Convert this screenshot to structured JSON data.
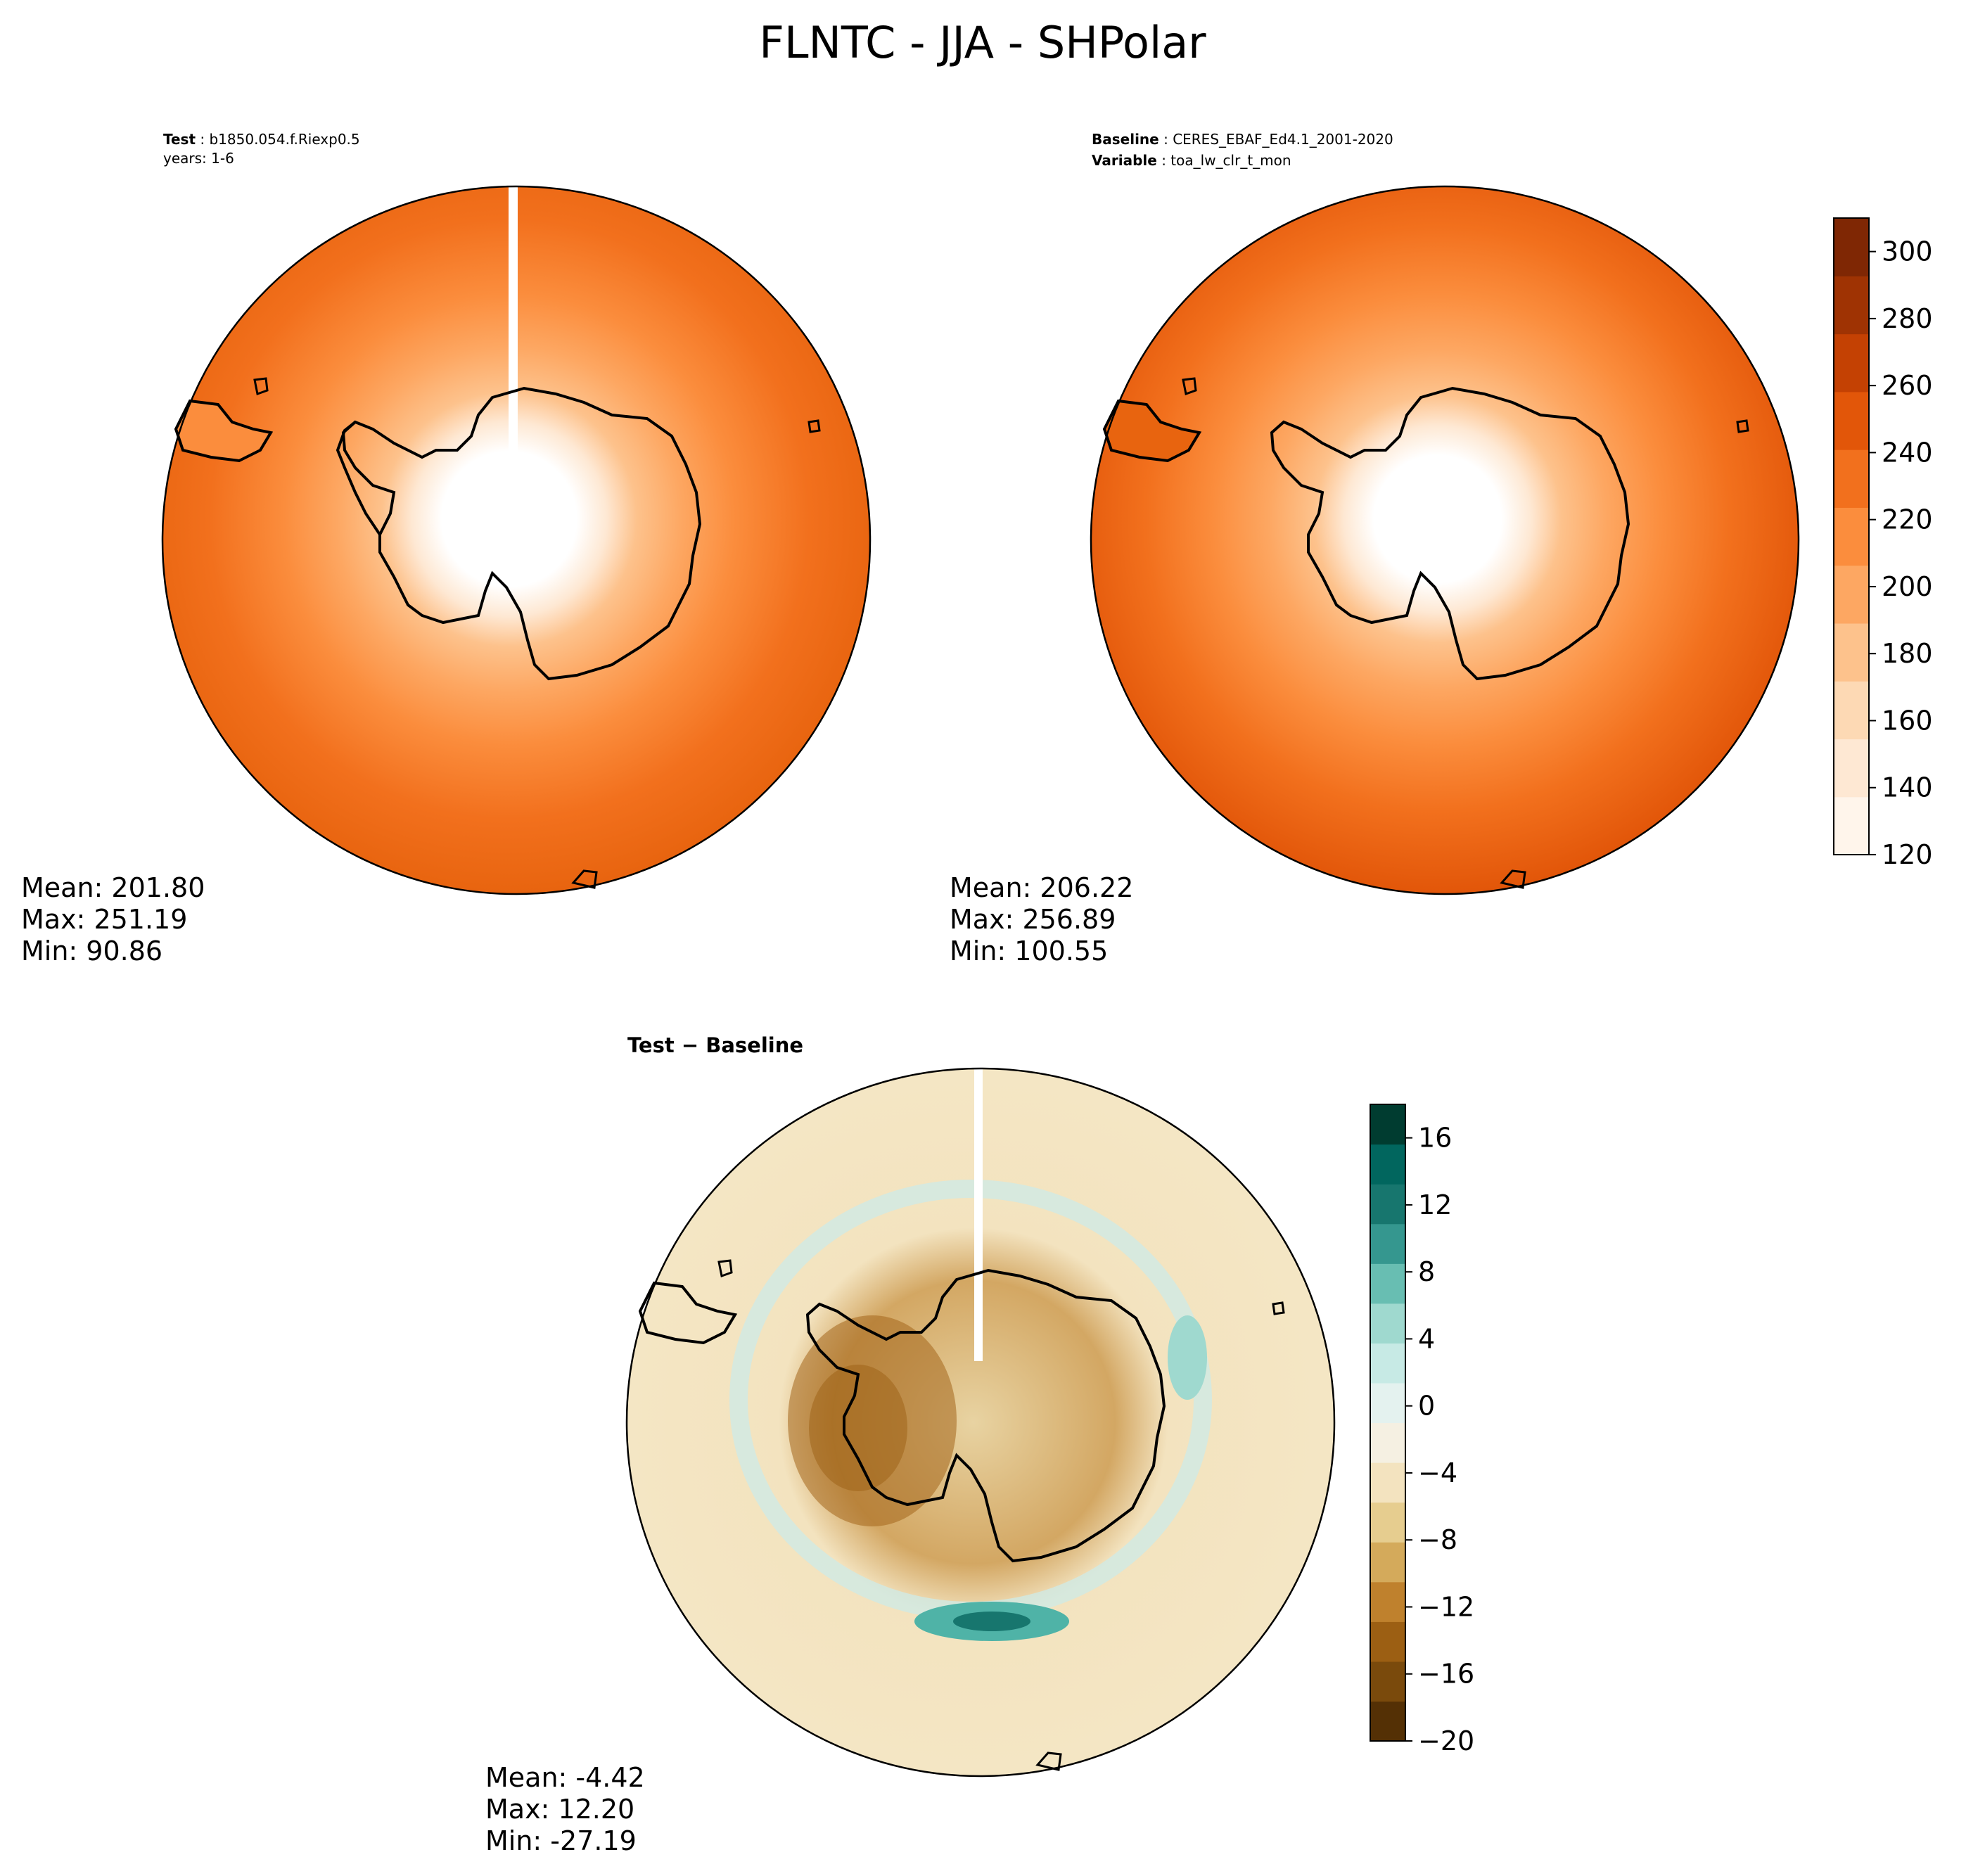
{
  "title": "FLNTC - JJA - SHPolar",
  "panels": {
    "test": {
      "label": "Test",
      "label_value": "b1850.054.f.Riexp0.5",
      "line2": "years: 1-6",
      "stats": {
        "mean": "Mean: 201.80",
        "max": "Max: 251.19",
        "min": "Min: 90.86"
      }
    },
    "baseline": {
      "label": "Baseline",
      "label_value": "CERES_EBAF_Ed4.1_2001-2020",
      "label2": "Variable",
      "label2_value": "toa_lw_clr_t_mon",
      "stats": {
        "mean": "Mean: 206.22",
        "max": "Max: 256.89",
        "min": "Min: 100.55"
      }
    },
    "diff": {
      "label": "Test − Baseline",
      "stats": {
        "mean": "Mean: -4.42",
        "max": "Max: 12.20",
        "min": "Min: -27.19"
      }
    }
  },
  "colorbar_top": {
    "ticks": [
      "120",
      "140",
      "160",
      "180",
      "200",
      "220",
      "240",
      "260",
      "280",
      "300"
    ],
    "range": [
      120,
      310
    ],
    "colors": [
      "#fff5eb",
      "#fee8d3",
      "#fdd9b4",
      "#fdc28c",
      "#fda762",
      "#fb8d3d",
      "#f2701d",
      "#e25609",
      "#c44103",
      "#9f3303",
      "#7f2704"
    ]
  },
  "colorbar_diff": {
    "ticks": [
      "−20",
      "−16",
      "−12",
      "−8",
      "−4",
      "0",
      "4",
      "8",
      "12",
      "16"
    ],
    "range": [
      -20,
      18
    ],
    "colors": [
      "#543005",
      "#7a4a0c",
      "#9c5f13",
      "#bf812d",
      "#d4aa5b",
      "#e6cd8f",
      "#f3e3bf",
      "#f5f0e2",
      "#e4f2ef",
      "#c7eae5",
      "#9fd9cf",
      "#68beb2",
      "#35978f",
      "#17766e",
      "#01665e",
      "#003c30"
    ]
  },
  "map_colors": {
    "ocean_outer": "#e8640f",
    "ocean_mid": "#f2701d",
    "coast_shelf": "#fda762",
    "ice_edge": "#fdd9b4",
    "continent": "#ffffff",
    "diff_background": "#f4e6c4",
    "diff_negative": "#a4661c",
    "diff_positive": "#4fb3a7"
  }
}
